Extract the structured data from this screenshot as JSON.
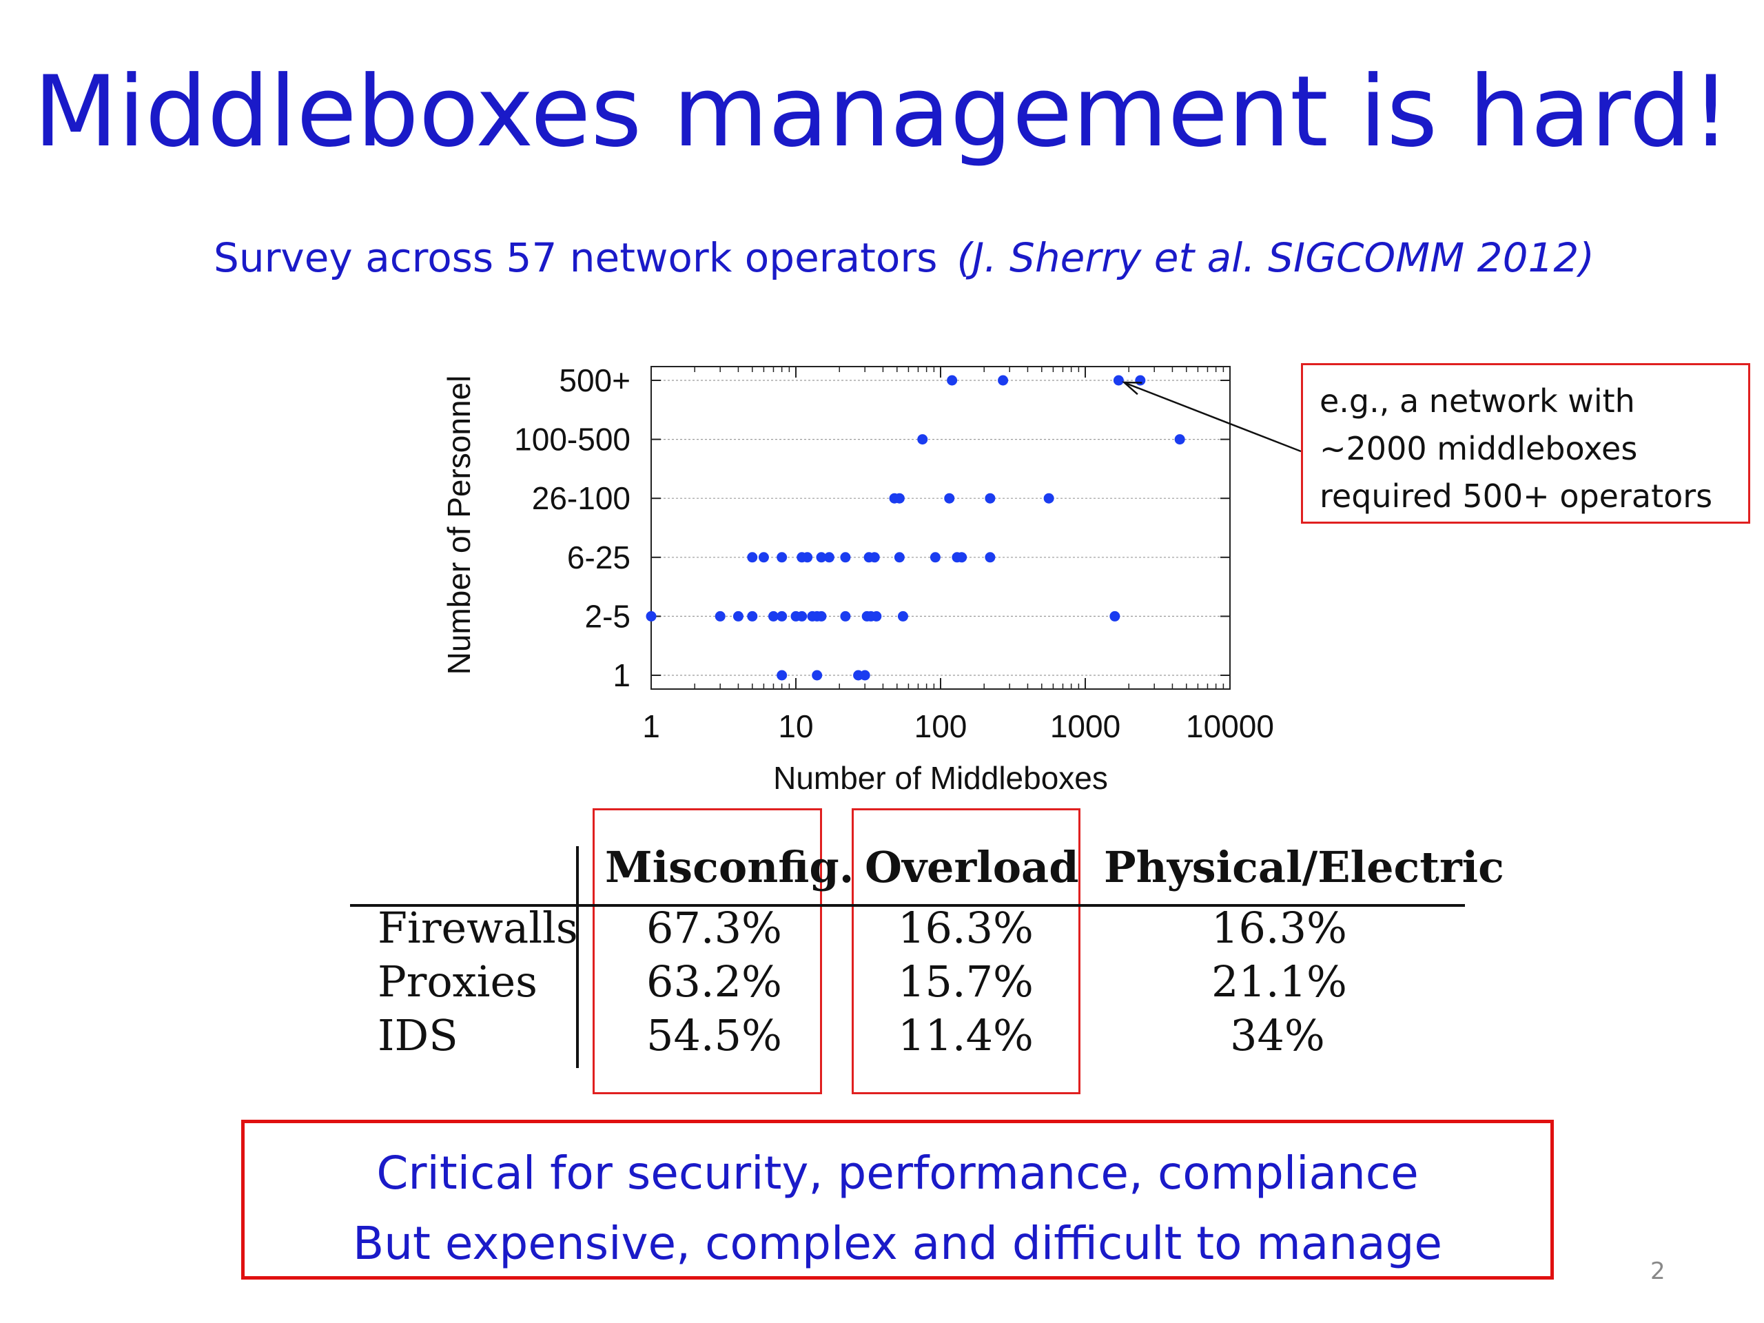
{
  "slide": {
    "title": "Middleboxes management is hard!",
    "subtitle": "Survey across 57 network operators",
    "citation": "(J. Sherry et al. SIGCOMM 2012)",
    "page_number": "2"
  },
  "callout": {
    "lines": [
      "e.g., a network with",
      "~2000 middleboxes",
      "required 500+ operators"
    ]
  },
  "chart_data": {
    "type": "scatter",
    "title": "",
    "xlabel": "Number of Middleboxes",
    "ylabel": "Number of Personnel",
    "x_scale": "log",
    "xlim": [
      1,
      10000
    ],
    "x_ticks": [
      "1",
      "10",
      "100",
      "1000",
      "10000"
    ],
    "y_categories": [
      "1",
      "2-5",
      "6-25",
      "26-100",
      "100-500",
      "500+"
    ],
    "grid": true,
    "point_color": "#1a3cf0",
    "points": [
      {
        "x": 120,
        "y": "500+"
      },
      {
        "x": 270,
        "y": "500+"
      },
      {
        "x": 1700,
        "y": "500+"
      },
      {
        "x": 2400,
        "y": "500+"
      },
      {
        "x": 75,
        "y": "100-500"
      },
      {
        "x": 4500,
        "y": "100-500"
      },
      {
        "x": 48,
        "y": "26-100"
      },
      {
        "x": 52,
        "y": "26-100"
      },
      {
        "x": 115,
        "y": "26-100"
      },
      {
        "x": 220,
        "y": "26-100"
      },
      {
        "x": 560,
        "y": "26-100"
      },
      {
        "x": 5,
        "y": "6-25"
      },
      {
        "x": 6,
        "y": "6-25"
      },
      {
        "x": 8,
        "y": "6-25"
      },
      {
        "x": 11,
        "y": "6-25"
      },
      {
        "x": 12,
        "y": "6-25"
      },
      {
        "x": 15,
        "y": "6-25"
      },
      {
        "x": 17,
        "y": "6-25"
      },
      {
        "x": 22,
        "y": "6-25"
      },
      {
        "x": 32,
        "y": "6-25"
      },
      {
        "x": 35,
        "y": "6-25"
      },
      {
        "x": 52,
        "y": "6-25"
      },
      {
        "x": 92,
        "y": "6-25"
      },
      {
        "x": 130,
        "y": "6-25"
      },
      {
        "x": 140,
        "y": "6-25"
      },
      {
        "x": 220,
        "y": "6-25"
      },
      {
        "x": 1,
        "y": "2-5"
      },
      {
        "x": 3,
        "y": "2-5"
      },
      {
        "x": 4,
        "y": "2-5"
      },
      {
        "x": 5,
        "y": "2-5"
      },
      {
        "x": 7,
        "y": "2-5"
      },
      {
        "x": 8,
        "y": "2-5"
      },
      {
        "x": 10,
        "y": "2-5"
      },
      {
        "x": 11,
        "y": "2-5"
      },
      {
        "x": 13,
        "y": "2-5"
      },
      {
        "x": 14,
        "y": "2-5"
      },
      {
        "x": 15,
        "y": "2-5"
      },
      {
        "x": 22,
        "y": "2-5"
      },
      {
        "x": 31,
        "y": "2-5"
      },
      {
        "x": 33,
        "y": "2-5"
      },
      {
        "x": 36,
        "y": "2-5"
      },
      {
        "x": 55,
        "y": "2-5"
      },
      {
        "x": 1600,
        "y": "2-5"
      },
      {
        "x": 8,
        "y": "1"
      },
      {
        "x": 14,
        "y": "1"
      },
      {
        "x": 27,
        "y": "1"
      },
      {
        "x": 30,
        "y": "1"
      }
    ],
    "annotation": {
      "points_to": {
        "x": 1700,
        "y": "500+"
      }
    }
  },
  "table": {
    "columns": [
      "",
      "Misconfig.",
      "Overload",
      "Physical/Electric"
    ],
    "rows": [
      {
        "label": "Firewalls",
        "values": [
          "67.3%",
          "16.3%",
          "16.3%"
        ]
      },
      {
        "label": "Proxies",
        "values": [
          "63.2%",
          "15.7%",
          "21.1%"
        ]
      },
      {
        "label": "IDS",
        "values": [
          "54.5%",
          "11.4%",
          "34%"
        ]
      }
    ],
    "highlighted_columns": [
      "Misconfig.",
      "Overload"
    ]
  },
  "conclusion": {
    "lines": [
      "Critical for security, performance, compliance",
      "But expensive, complex and difficult to manage"
    ]
  },
  "colors": {
    "title_blue": "#1a1ac8",
    "highlight_red": "#e02020",
    "point_blue": "#1a3cf0"
  }
}
